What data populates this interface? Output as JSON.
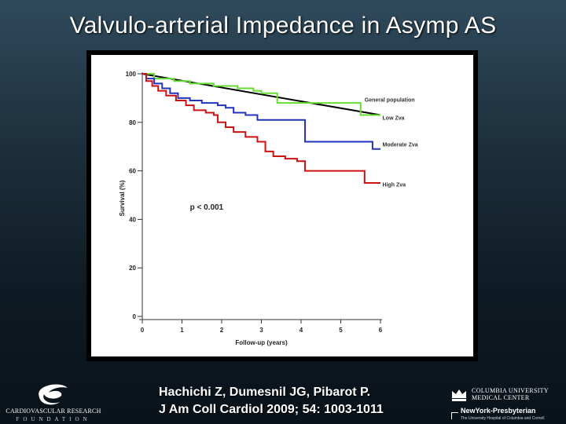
{
  "slide": {
    "title": "Valvulo-arterial Impedance in Asymp AS"
  },
  "citation": {
    "line1": "Hachichi Z, Dumesnil JG, Pibarot P.",
    "line2": "J Am Coll Cardiol 2009; 54: 1003-1011"
  },
  "logos": {
    "crf_line1": "CARDIOVASCULAR RESEARCH",
    "crf_line2": "FOUNDATION",
    "columbia_line1": "COLUMBIA UNIVERSITY",
    "columbia_line2": "MEDICAL CENTER",
    "nyp_line1": "NewYork-Presbyterian",
    "nyp_line2": "The University Hospital of Columbia and Cornell"
  },
  "chart_data": {
    "type": "line",
    "title": "",
    "xlabel": "Follow-up (years)",
    "ylabel": "Survival (%)",
    "xlim": [
      0,
      6
    ],
    "ylim": [
      0,
      100
    ],
    "xticks": [
      0,
      1,
      2,
      3,
      4,
      5,
      6
    ],
    "yticks": [
      0,
      20,
      40,
      60,
      80,
      100
    ],
    "annotation": "p < 0.001",
    "grid": false,
    "series": [
      {
        "name": "General population",
        "color": "#000000",
        "step": false,
        "points": [
          [
            0,
            100
          ],
          [
            6,
            83
          ]
        ]
      },
      {
        "name": "Low Zva",
        "color": "#66dd33",
        "step": true,
        "points": [
          [
            0,
            100
          ],
          [
            0.3,
            98
          ],
          [
            0.8,
            97
          ],
          [
            1.2,
            96
          ],
          [
            1.8,
            95
          ],
          [
            2.4,
            94
          ],
          [
            2.8,
            93
          ],
          [
            3.0,
            92
          ],
          [
            3.4,
            88
          ],
          [
            5.5,
            88
          ],
          [
            5.5,
            83
          ],
          [
            6,
            83
          ]
        ]
      },
      {
        "name": "Moderate Zva",
        "color": "#2233bb",
        "step": true,
        "points": [
          [
            0,
            100
          ],
          [
            0.1,
            98
          ],
          [
            0.3,
            96
          ],
          [
            0.5,
            94
          ],
          [
            0.7,
            92
          ],
          [
            0.9,
            90
          ],
          [
            1.2,
            89
          ],
          [
            1.5,
            88
          ],
          [
            1.9,
            87
          ],
          [
            2.1,
            86
          ],
          [
            2.3,
            84
          ],
          [
            2.6,
            83
          ],
          [
            2.9,
            81
          ],
          [
            3.3,
            81
          ],
          [
            4.0,
            81
          ],
          [
            4.1,
            72
          ],
          [
            5.8,
            72
          ],
          [
            5.8,
            69
          ],
          [
            6,
            69
          ]
        ]
      },
      {
        "name": "High Zva",
        "color": "#cc1111",
        "step": true,
        "points": [
          [
            0,
            100
          ],
          [
            0.1,
            97
          ],
          [
            0.25,
            95
          ],
          [
            0.4,
            93
          ],
          [
            0.6,
            91
          ],
          [
            0.85,
            89
          ],
          [
            1.1,
            87
          ],
          [
            1.3,
            85
          ],
          [
            1.6,
            84
          ],
          [
            1.8,
            83
          ],
          [
            1.9,
            80
          ],
          [
            2.1,
            78
          ],
          [
            2.3,
            76
          ],
          [
            2.6,
            74
          ],
          [
            2.9,
            72
          ],
          [
            3.1,
            68
          ],
          [
            3.3,
            66
          ],
          [
            3.6,
            65
          ],
          [
            3.9,
            64
          ],
          [
            4.1,
            60
          ],
          [
            5.6,
            60
          ],
          [
            5.6,
            55
          ],
          [
            6,
            55
          ]
        ]
      }
    ],
    "legend_labels": [
      "General population",
      "Low Zva",
      "Moderate Zva",
      "High Zva"
    ]
  }
}
